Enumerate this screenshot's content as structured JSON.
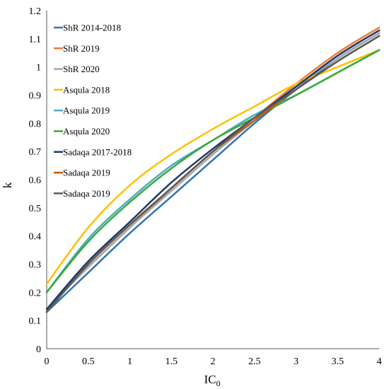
{
  "chart_data": {
    "type": "line",
    "xlabel": "IC",
    "xlabel_subscript": "0",
    "ylabel": "k",
    "xlim": [
      0,
      4
    ],
    "ylim": [
      0,
      1.2
    ],
    "x_ticks": [
      "0",
      "0.5",
      "1",
      "1.5",
      "2",
      "2.5",
      "3",
      "3.5",
      "4"
    ],
    "y_ticks": [
      "0",
      "0.1",
      "0.2",
      "0.3",
      "0.4",
      "0.5",
      "0.6",
      "0.7",
      "0.8",
      "0.9",
      "1",
      "1.1",
      "1.2"
    ],
    "grid": false,
    "legend_position": "top-left",
    "x": [
      0,
      0.5,
      1,
      1.5,
      2,
      2.5,
      3,
      3.5,
      4
    ],
    "series": [
      {
        "name": "ShR 2014-2018",
        "color": "#2E75B6",
        "values": [
          0.13,
          0.27,
          0.41,
          0.54,
          0.67,
          0.8,
          0.92,
          1.03,
          1.12
        ]
      },
      {
        "name": "ShR 2019",
        "color": "#ED7D31",
        "values": [
          0.14,
          0.29,
          0.43,
          0.57,
          0.7,
          0.82,
          0.94,
          1.05,
          1.14
        ]
      },
      {
        "name": "ShR 2020",
        "color": "#A5A5A5",
        "values": [
          0.14,
          0.29,
          0.43,
          0.56,
          0.69,
          0.81,
          0.93,
          1.03,
          1.12
        ]
      },
      {
        "name": "Asqula 2018",
        "color": "#FFC000",
        "values": [
          0.23,
          0.43,
          0.58,
          0.69,
          0.78,
          0.86,
          0.94,
          1.0,
          1.06
        ]
      },
      {
        "name": "Asqula 2019",
        "color": "#4BACC6",
        "values": [
          0.2,
          0.39,
          0.53,
          0.65,
          0.74,
          0.83,
          0.9,
          0.98,
          1.06
        ]
      },
      {
        "name": "Asqula 2020",
        "color": "#3AAA35",
        "values": [
          0.2,
          0.38,
          0.52,
          0.64,
          0.74,
          0.82,
          0.9,
          0.98,
          1.06
        ]
      },
      {
        "name": "Sadaqa 2017-2018",
        "color": "#1F3864",
        "values": [
          0.14,
          0.31,
          0.45,
          0.59,
          0.71,
          0.82,
          0.93,
          1.04,
          1.13
        ]
      },
      {
        "name": "Sadaqa 2019",
        "color": "#C55A11",
        "values": [
          0.13,
          0.3,
          0.44,
          0.57,
          0.7,
          0.81,
          0.92,
          1.02,
          1.11
        ]
      },
      {
        "name": "Sadaqa 2019",
        "color": "#595959",
        "values": [
          0.13,
          0.3,
          0.44,
          0.57,
          0.7,
          0.82,
          0.92,
          1.02,
          1.11
        ]
      }
    ]
  }
}
